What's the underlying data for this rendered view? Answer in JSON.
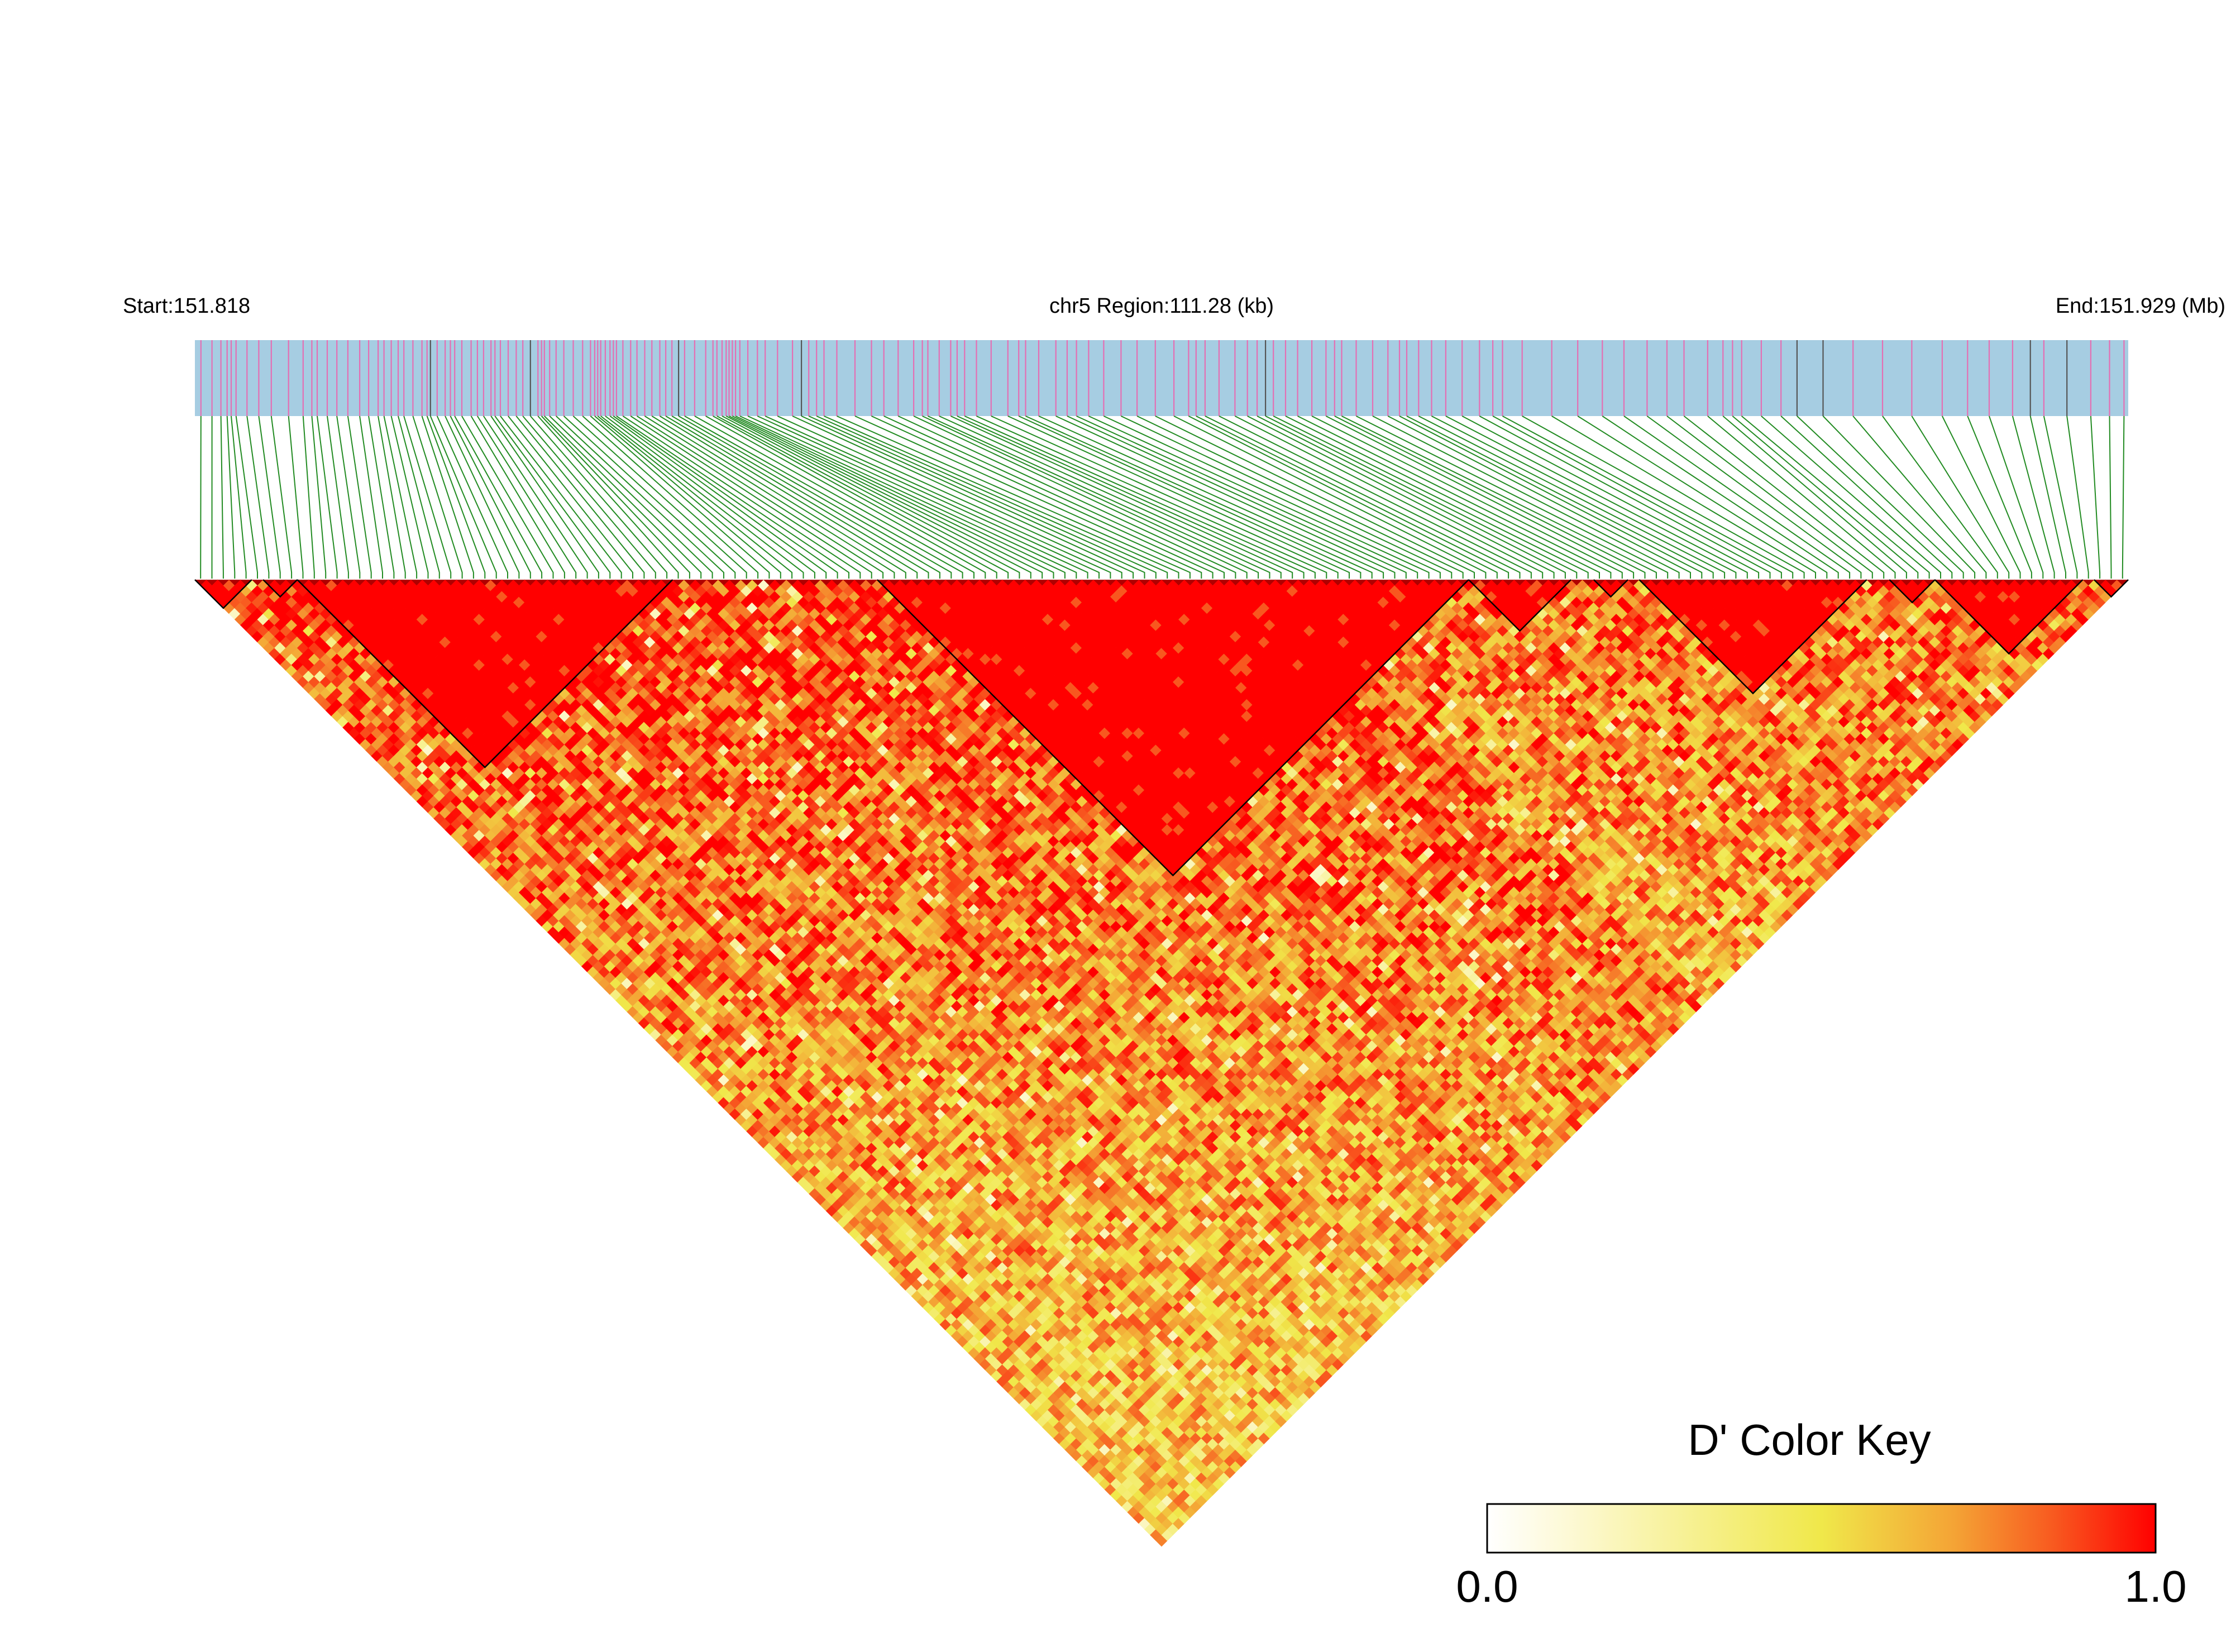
{
  "chart_data": {
    "type": "heatmap",
    "subtype": "linkage-disequilibrium-triangle",
    "chromosome": "chr5",
    "header": {
      "start_label": "Start:151.818",
      "region_label": "chr5 Region:111.28 (kb)",
      "end_label": "End:151.929 (Mb)"
    },
    "region": {
      "start_mb": 151.818,
      "end_mb": 151.929,
      "length_kb": 111.28
    },
    "marker_count": 170,
    "color_key": {
      "title": "D' Color Key",
      "min_label": "0.0",
      "max_label": "1.0",
      "range": [
        0.0,
        1.0
      ],
      "colors": [
        "#ffffff",
        "#f5eb4a",
        "#f5a332",
        "#ff0000"
      ]
    },
    "colors": {
      "gene_track": "#a6cde2",
      "snp_tick": "#e46fb3",
      "snp_tick_dark": "#555555",
      "connector": "#228b22",
      "block_outline": "#000000"
    },
    "ld_blocks": [
      {
        "from": 1,
        "to": 5
      },
      {
        "from": 7,
        "to": 9
      },
      {
        "from": 10,
        "to": 42
      },
      {
        "from": 61,
        "to": 112
      },
      {
        "from": 113,
        "to": 121
      },
      {
        "from": 124,
        "to": 126
      },
      {
        "from": 128,
        "to": 147
      },
      {
        "from": 150,
        "to": 153
      },
      {
        "from": 154,
        "to": 166
      },
      {
        "from": 168,
        "to": 170
      }
    ],
    "grid": false,
    "legend_position": "bottom-right"
  }
}
